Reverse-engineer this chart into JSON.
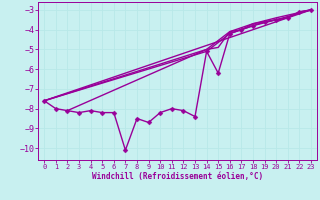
{
  "xlabel": "Windchill (Refroidissement éolien,°C)",
  "background_color": "#c8f0f0",
  "line_color": "#990099",
  "grid_color": "#b8e8e8",
  "xlim": [
    -0.5,
    23.5
  ],
  "ylim": [
    -10.6,
    -2.6
  ],
  "yticks": [
    -10,
    -9,
    -8,
    -7,
    -6,
    -5,
    -4,
    -3
  ],
  "xticks": [
    0,
    1,
    2,
    3,
    4,
    5,
    6,
    7,
    8,
    9,
    10,
    11,
    12,
    13,
    14,
    15,
    16,
    17,
    18,
    19,
    20,
    21,
    22,
    23
  ],
  "lines": [
    {
      "x": [
        0,
        1,
        2,
        3,
        4,
        5,
        6,
        7,
        8,
        9,
        10,
        11,
        12,
        13,
        14,
        15,
        16,
        17,
        18,
        19,
        20,
        21,
        22,
        23
      ],
      "y": [
        -7.6,
        -8.0,
        -8.1,
        -8.2,
        -8.1,
        -8.2,
        -8.2,
        -10.1,
        -8.5,
        -8.7,
        -8.2,
        -8.0,
        -8.1,
        -8.4,
        -5.1,
        -6.2,
        -4.2,
        -4.0,
        -3.8,
        -3.6,
        -3.5,
        -3.4,
        -3.1,
        -3.0
      ],
      "has_markers": true
    },
    {
      "x": [
        0,
        23
      ],
      "y": [
        -7.6,
        -3.0
      ],
      "has_markers": false
    },
    {
      "x": [
        0,
        14,
        16,
        18,
        20,
        23
      ],
      "y": [
        -7.6,
        -5.1,
        -4.2,
        -3.8,
        -3.5,
        -3.0
      ],
      "has_markers": false
    },
    {
      "x": [
        2,
        14,
        16,
        18,
        20,
        23
      ],
      "y": [
        -8.1,
        -5.0,
        -4.1,
        -3.7,
        -3.4,
        -3.0
      ],
      "has_markers": false
    },
    {
      "x": [
        0,
        14,
        15,
        16,
        17,
        18,
        19,
        20,
        21,
        22,
        23
      ],
      "y": [
        -7.6,
        -5.0,
        -4.9,
        -4.1,
        -4.0,
        -3.7,
        -3.6,
        -3.5,
        -3.4,
        -3.1,
        -3.0
      ],
      "has_markers": false
    }
  ],
  "marker": "D",
  "markersize": 2.5,
  "linewidth": 1.0
}
